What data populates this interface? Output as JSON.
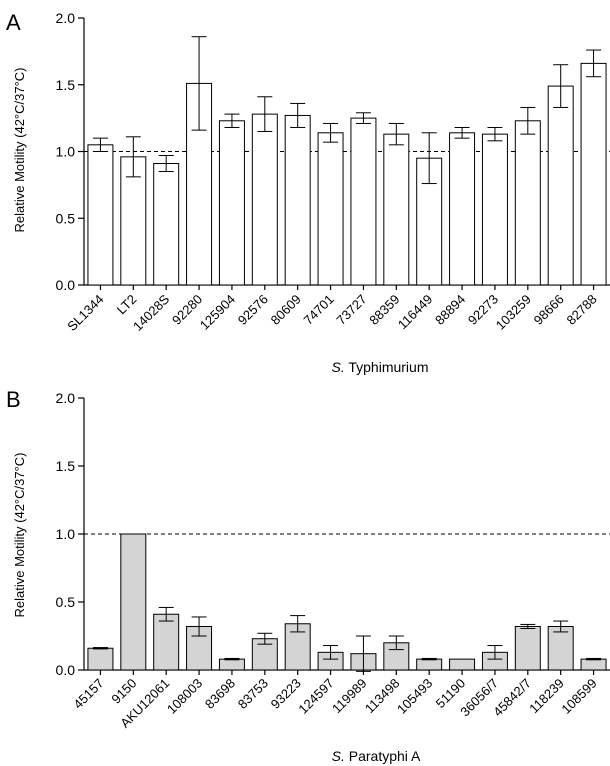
{
  "chart_data": [
    {
      "type": "bar",
      "panel": "A",
      "categories": [
        "SL1344",
        "LT2",
        "14028S",
        "92280",
        "125904",
        "92576",
        "80609",
        "74701",
        "73727",
        "88359",
        "116449",
        "88894",
        "92273",
        "103259",
        "98666",
        "82788"
      ],
      "values": [
        1.05,
        0.96,
        0.91,
        1.51,
        1.23,
        1.28,
        1.27,
        1.14,
        1.25,
        1.13,
        0.95,
        1.14,
        1.13,
        1.23,
        1.49,
        1.66
      ],
      "errors": [
        0.05,
        0.15,
        0.06,
        0.35,
        0.05,
        0.13,
        0.09,
        0.07,
        0.04,
        0.08,
        0.19,
        0.04,
        0.05,
        0.1,
        0.16,
        0.1
      ],
      "ylim": [
        0,
        2.0
      ],
      "yticks": [
        "0.0",
        "0.5",
        "1.0",
        "1.5",
        "2.0"
      ],
      "reference_line": 1.0,
      "bar_color": "#ffffff",
      "ylabel": "Relative Motility (42°C/37°C)",
      "xlabel_italic": "S.",
      "xlabel_rest": " Typhimurium"
    },
    {
      "type": "bar",
      "panel": "B",
      "categories": [
        "45157",
        "9150",
        "AKU12061",
        "108003",
        "83698",
        "83753",
        "93223",
        "124597",
        "119989",
        "113498",
        "105493",
        "51190",
        "36056/7",
        "45842/7",
        "118239",
        "108599"
      ],
      "values": [
        0.16,
        1.0,
        0.41,
        0.32,
        0.08,
        0.23,
        0.34,
        0.13,
        0.12,
        0.2,
        0.08,
        0.08,
        0.13,
        0.32,
        0.32,
        0.08
      ],
      "errors": [
        0.005,
        0.0,
        0.05,
        0.07,
        0.005,
        0.04,
        0.06,
        0.05,
        0.13,
        0.05,
        0.005,
        0.0,
        0.05,
        0.015,
        0.04,
        0.005
      ],
      "ylim": [
        0,
        2.0
      ],
      "yticks": [
        "0.0",
        "0.5",
        "1.0",
        "1.5",
        "2.0"
      ],
      "reference_line": 1.0,
      "bar_color": "#d4d4d4",
      "ylabel": "Relative Motility (42°C/37°C)",
      "xlabel_italic": "S.",
      "xlabel_rest": " Paratyphi A"
    }
  ]
}
